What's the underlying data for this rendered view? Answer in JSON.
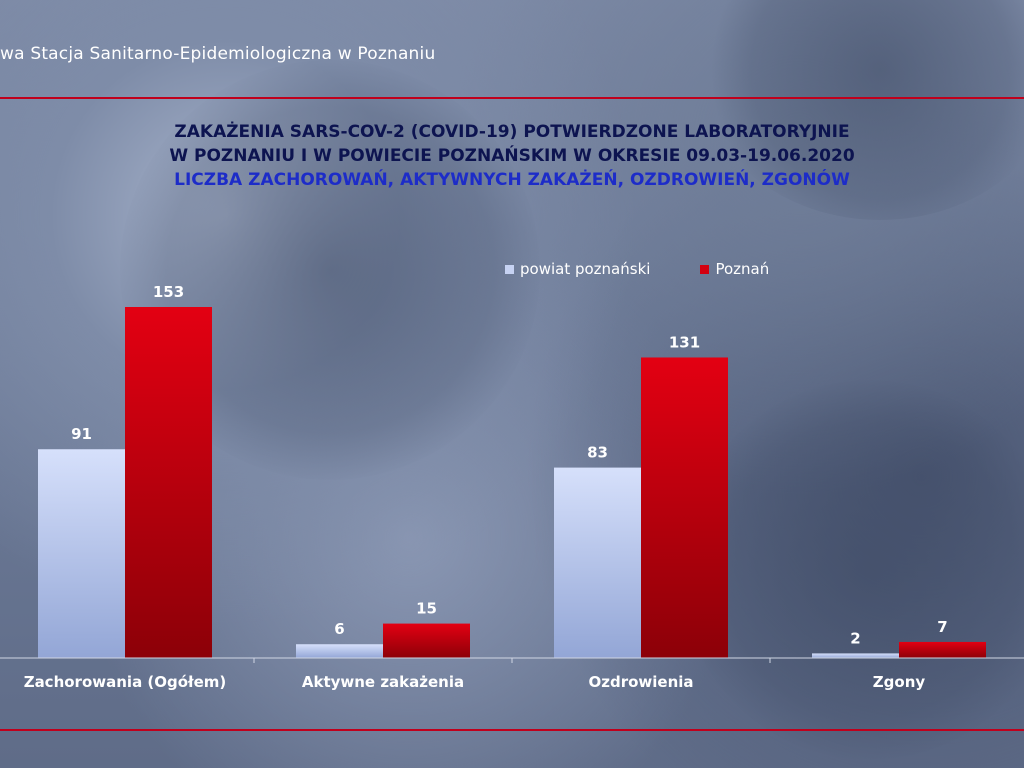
{
  "header": {
    "text": "wa Stacja Sanitarno-Epidemiologiczna w Poznaniu"
  },
  "chart_data": {
    "type": "bar",
    "title_lines": [
      "ZAKAŻENIA SARS-COV-2 (COVID-19) POTWIERDZONE LABORATORYJNIE",
      "W POZNANIU I W POWIECIE POZNAŃSKIM W OKRESIE 09.03-19.06.2020",
      "LICZBA ZACHOROWAŃ, AKTYWNYCH ZAKAŻEŃ, OZDROWIEŃ, ZGONÓW"
    ],
    "categories": [
      "Zachorowania (Ogółem)",
      "Aktywne zakażenia",
      "Ozdrowienia",
      "Zgony"
    ],
    "series": [
      {
        "name": "powiat poznański",
        "values": [
          91,
          6,
          83,
          2
        ],
        "color": "#c6d2f2"
      },
      {
        "name": "Poznań",
        "values": [
          153,
          15,
          131,
          7
        ],
        "color": "#d40010"
      }
    ],
    "ylim": [
      0,
      170
    ],
    "legend_position": "top-right",
    "grid": false
  }
}
